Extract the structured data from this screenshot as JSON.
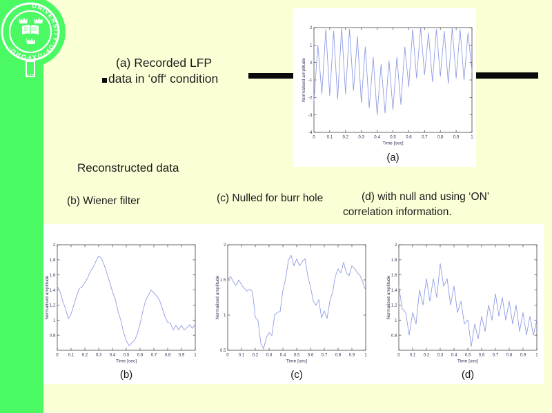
{
  "slide": {
    "institution": "University of Oxford",
    "colors": {
      "background": "#FBFFD6",
      "sidebar_green": "#4BF963",
      "plot_line": "#8F9CE4",
      "text": "#1B1B1B",
      "bar_black": "#0A0A0A"
    },
    "bullet_a": {
      "line1": "(a) Recorded LFP",
      "line2": "data in ‘off‘ condition"
    },
    "reconstructed_label": "Reconstructed data",
    "label_b": "(b) Wiener filter",
    "label_c": "(c) Nulled for burr hole",
    "label_d_line1": "(d) with null and using  ‘ON’",
    "label_d_line2": "correlation information."
  },
  "chart_data": [
    {
      "id": "a",
      "type": "line",
      "caption": "(a)",
      "xlabel": "Time [sec]",
      "ylabel": "Normalised amplitude",
      "xlim": [
        0,
        1
      ],
      "ylim": [
        -4,
        2
      ],
      "xticks": [
        0,
        0.1,
        0.2,
        0.3,
        0.4,
        0.5,
        0.6,
        0.7,
        0.8,
        0.9,
        1
      ],
      "xtick_labels": [
        "0",
        "0.1",
        "0.2",
        "0.3",
        "0.4",
        "0.5",
        "0.6",
        "0.7",
        "0.8",
        "0.9",
        "1"
      ],
      "yticks": [
        2,
        1,
        0,
        -1,
        -2,
        -3,
        -4
      ],
      "ytick_labels": [
        "2",
        "1",
        "0",
        "-1",
        "-2",
        "-3",
        "-4"
      ],
      "line_color": "#8F9CE4",
      "grid": false,
      "points": [
        [
          0,
          -2.2
        ],
        [
          0.025,
          1.0
        ],
        [
          0.05,
          -1.8
        ],
        [
          0.075,
          1.9
        ],
        [
          0.1,
          -1.9
        ],
        [
          0.125,
          1.8
        ],
        [
          0.15,
          -2.1
        ],
        [
          0.175,
          2.0
        ],
        [
          0.2,
          -1.8
        ],
        [
          0.225,
          1.9
        ],
        [
          0.25,
          -1.6
        ],
        [
          0.275,
          1.5
        ],
        [
          0.3,
          -2.3
        ],
        [
          0.325,
          0.9
        ],
        [
          0.35,
          -2.6
        ],
        [
          0.375,
          0.3
        ],
        [
          0.4,
          -3.0
        ],
        [
          0.425,
          -0.1
        ],
        [
          0.45,
          -2.9
        ],
        [
          0.475,
          0.1
        ],
        [
          0.5,
          -2.7
        ],
        [
          0.525,
          0.3
        ],
        [
          0.55,
          -2.4
        ],
        [
          0.575,
          0.9
        ],
        [
          0.6,
          -1.4
        ],
        [
          0.625,
          1.9
        ],
        [
          0.65,
          -0.9
        ],
        [
          0.675,
          2.0
        ],
        [
          0.7,
          -0.7
        ],
        [
          0.725,
          1.7
        ],
        [
          0.75,
          -1.1
        ],
        [
          0.775,
          1.9
        ],
        [
          0.8,
          -0.8
        ],
        [
          0.825,
          1.8
        ],
        [
          0.85,
          -1.2
        ],
        [
          0.875,
          2.0
        ],
        [
          0.9,
          -0.9
        ],
        [
          0.925,
          1.9
        ],
        [
          0.95,
          -1.0
        ],
        [
          0.975,
          1.7
        ],
        [
          1,
          -0.5
        ]
      ]
    },
    {
      "id": "b",
      "type": "line",
      "caption": "(b)",
      "xlabel": "Time [sec]",
      "ylabel": "Normalised amplitude",
      "xlim": [
        0,
        1
      ],
      "ylim": [
        0.6,
        2
      ],
      "xticks": [
        0,
        0.1,
        0.2,
        0.3,
        0.4,
        0.5,
        0.6,
        0.7,
        0.8,
        0.9,
        1
      ],
      "xtick_labels": [
        "0",
        "0.1",
        "0.2",
        "0.3",
        "0.4",
        "0.5",
        "0.6",
        "0.7",
        "0.8",
        "0.9",
        "1"
      ],
      "yticks": [
        2,
        1.8,
        1.6,
        1.4,
        1.2,
        1,
        0.8
      ],
      "ytick_labels": [
        "2",
        "1.8",
        "1.6",
        "1.4",
        "1.2",
        "1",
        "0.8"
      ],
      "line_color": "#8F9CE4",
      "grid": false,
      "points": [
        [
          0,
          1.45
        ],
        [
          0.02,
          1.38
        ],
        [
          0.04,
          1.25
        ],
        [
          0.06,
          1.15
        ],
        [
          0.08,
          1.02
        ],
        [
          0.1,
          1.08
        ],
        [
          0.12,
          1.2
        ],
        [
          0.14,
          1.32
        ],
        [
          0.16,
          1.42
        ],
        [
          0.18,
          1.44
        ],
        [
          0.2,
          1.5
        ],
        [
          0.22,
          1.56
        ],
        [
          0.24,
          1.65
        ],
        [
          0.26,
          1.7
        ],
        [
          0.28,
          1.78
        ],
        [
          0.3,
          1.85
        ],
        [
          0.32,
          1.82
        ],
        [
          0.34,
          1.73
        ],
        [
          0.36,
          1.62
        ],
        [
          0.38,
          1.5
        ],
        [
          0.4,
          1.38
        ],
        [
          0.42,
          1.28
        ],
        [
          0.44,
          1.12
        ],
        [
          0.46,
          1.0
        ],
        [
          0.48,
          0.84
        ],
        [
          0.5,
          0.73
        ],
        [
          0.52,
          0.66
        ],
        [
          0.54,
          0.7
        ],
        [
          0.56,
          0.73
        ],
        [
          0.58,
          0.82
        ],
        [
          0.6,
          0.95
        ],
        [
          0.62,
          1.12
        ],
        [
          0.64,
          1.26
        ],
        [
          0.66,
          1.33
        ],
        [
          0.68,
          1.4
        ],
        [
          0.7,
          1.36
        ],
        [
          0.72,
          1.32
        ],
        [
          0.74,
          1.27
        ],
        [
          0.76,
          1.16
        ],
        [
          0.78,
          1.05
        ],
        [
          0.8,
          0.97
        ],
        [
          0.82,
          0.96
        ],
        [
          0.84,
          0.87
        ],
        [
          0.86,
          0.93
        ],
        [
          0.88,
          0.87
        ],
        [
          0.9,
          0.93
        ],
        [
          0.92,
          0.87
        ],
        [
          0.94,
          0.9
        ],
        [
          0.96,
          0.94
        ],
        [
          0.98,
          0.89
        ],
        [
          1,
          0.95
        ]
      ]
    },
    {
      "id": "c",
      "type": "line",
      "caption": "(c)",
      "xlabel": "Time [sec]",
      "ylabel": "Normalised amplitude",
      "xlim": [
        0,
        1
      ],
      "ylim": [
        0.5,
        2
      ],
      "xticks": [
        0,
        0.1,
        0.2,
        0.3,
        0.4,
        0.5,
        0.6,
        0.7,
        0.8,
        0.9,
        1
      ],
      "xtick_labels": [
        "0",
        "0.1",
        "0.2",
        "0.3",
        "0.4",
        "0.5",
        "0.6",
        "0.7",
        "0.8",
        "0.9",
        "1"
      ],
      "yticks": [
        2,
        1.5,
        1,
        0.5
      ],
      "ytick_labels": [
        "2",
        "1.5",
        "1",
        "0.5"
      ],
      "line_color": "#8F9CE4",
      "grid": false,
      "points": [
        [
          0,
          1.5
        ],
        [
          0.02,
          1.55
        ],
        [
          0.04,
          1.48
        ],
        [
          0.06,
          1.42
        ],
        [
          0.08,
          1.5
        ],
        [
          0.1,
          1.43
        ],
        [
          0.12,
          1.38
        ],
        [
          0.14,
          1.34
        ],
        [
          0.16,
          1.37
        ],
        [
          0.18,
          1.33
        ],
        [
          0.2,
          0.97
        ],
        [
          0.22,
          0.92
        ],
        [
          0.24,
          0.6
        ],
        [
          0.26,
          0.52
        ],
        [
          0.28,
          0.68
        ],
        [
          0.3,
          0.75
        ],
        [
          0.32,
          0.71
        ],
        [
          0.34,
          1.0
        ],
        [
          0.36,
          1.04
        ],
        [
          0.38,
          1.05
        ],
        [
          0.4,
          1.35
        ],
        [
          0.42,
          1.52
        ],
        [
          0.44,
          1.78
        ],
        [
          0.46,
          1.85
        ],
        [
          0.48,
          1.7
        ],
        [
          0.5,
          1.8
        ],
        [
          0.52,
          1.7
        ],
        [
          0.54,
          1.76
        ],
        [
          0.56,
          1.8
        ],
        [
          0.58,
          1.56
        ],
        [
          0.6,
          1.4
        ],
        [
          0.62,
          1.2
        ],
        [
          0.64,
          1.14
        ],
        [
          0.66,
          1.22
        ],
        [
          0.68,
          0.96
        ],
        [
          0.7,
          1.06
        ],
        [
          0.72,
          0.95
        ],
        [
          0.74,
          1.2
        ],
        [
          0.76,
          1.32
        ],
        [
          0.78,
          1.55
        ],
        [
          0.8,
          1.66
        ],
        [
          0.82,
          1.6
        ],
        [
          0.84,
          1.75
        ],
        [
          0.86,
          1.6
        ],
        [
          0.88,
          1.56
        ],
        [
          0.9,
          1.7
        ],
        [
          0.92,
          1.66
        ],
        [
          0.94,
          1.6
        ],
        [
          0.96,
          1.56
        ],
        [
          0.98,
          1.46
        ],
        [
          1,
          1.35
        ]
      ]
    },
    {
      "id": "d",
      "type": "line",
      "caption": "(d)",
      "xlabel": "Time [sec]",
      "ylabel": "Normalised amplitude",
      "xlim": [
        0,
        1
      ],
      "ylim": [
        0.6,
        2
      ],
      "xticks": [
        0,
        0.1,
        0.2,
        0.3,
        0.4,
        0.5,
        0.6,
        0.7,
        0.8,
        0.9,
        1
      ],
      "xtick_labels": [
        "0",
        "0.1",
        "0.2",
        "0.3",
        "0.4",
        "0.5",
        "0.6",
        "0.7",
        "0.8",
        "0.9",
        "1"
      ],
      "yticks": [
        2,
        1.8,
        1.6,
        1.4,
        1.2,
        1,
        0.8
      ],
      "ytick_labels": [
        "2",
        "1.8",
        "1.6",
        "1.4",
        "1.2",
        "1",
        "0.8"
      ],
      "line_color": "#8F9CE4",
      "grid": false,
      "points": [
        [
          0,
          1.45
        ],
        [
          0.025,
          1.15
        ],
        [
          0.05,
          1.1
        ],
        [
          0.075,
          0.8
        ],
        [
          0.1,
          1.1
        ],
        [
          0.125,
          0.95
        ],
        [
          0.15,
          1.4
        ],
        [
          0.175,
          1.2
        ],
        [
          0.2,
          1.55
        ],
        [
          0.225,
          1.25
        ],
        [
          0.25,
          1.55
        ],
        [
          0.275,
          1.3
        ],
        [
          0.3,
          1.75
        ],
        [
          0.325,
          1.45
        ],
        [
          0.35,
          1.55
        ],
        [
          0.375,
          1.2
        ],
        [
          0.4,
          1.45
        ],
        [
          0.425,
          1.1
        ],
        [
          0.45,
          1.25
        ],
        [
          0.475,
          0.95
        ],
        [
          0.5,
          1.0
        ],
        [
          0.525,
          0.65
        ],
        [
          0.55,
          0.95
        ],
        [
          0.575,
          0.75
        ],
        [
          0.6,
          1.05
        ],
        [
          0.625,
          0.85
        ],
        [
          0.65,
          1.2
        ],
        [
          0.675,
          1.0
        ],
        [
          0.7,
          1.35
        ],
        [
          0.725,
          1.05
        ],
        [
          0.75,
          1.3
        ],
        [
          0.775,
          1.0
        ],
        [
          0.8,
          1.25
        ],
        [
          0.825,
          0.95
        ],
        [
          0.85,
          1.2
        ],
        [
          0.875,
          0.85
        ],
        [
          0.9,
          1.1
        ],
        [
          0.925,
          0.8
        ],
        [
          0.95,
          1.05
        ],
        [
          0.975,
          0.8
        ],
        [
          1,
          1.0
        ]
      ]
    }
  ]
}
